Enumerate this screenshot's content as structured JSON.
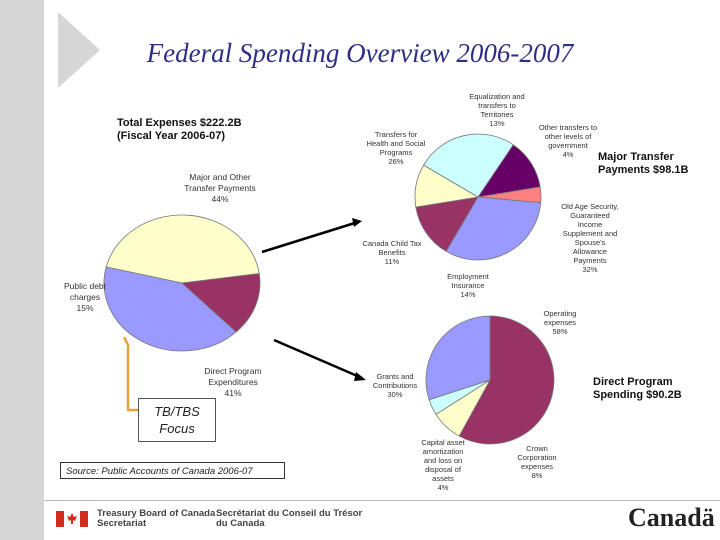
{
  "title": "Federal Spending Overview 2006-2007",
  "total_label": "Total Expenses $222.2B",
  "total_sub": "(Fiscal Year 2006-07)",
  "focus_label_line1": "TB/TBS",
  "focus_label_line2": "Focus",
  "source": "Source: Public Accounts of Canada 2006-07",
  "major_transfer_title_line1": "Major Transfer",
  "major_transfer_title_line2": "Payments $98.1B",
  "direct_title_line1": "Direct Program",
  "direct_title_line2": "Spending $90.2B",
  "footer": {
    "dept_en_line1": "Treasury Board of Canada",
    "dept_en_line2": "Secretariat",
    "dept_fr_line1": "Secrétariat du Conseil du Trésor",
    "dept_fr_line2": "du Canada",
    "wordmark": "Canadä"
  },
  "chart_data": [
    {
      "type": "pie",
      "title": "Total Expenses $222.2B",
      "slices": [
        {
          "label_lines": [
            "Major and Other",
            "Transfer Payments"
          ],
          "pct_label": "44%",
          "value": 44,
          "color": "#ffffcc"
        },
        {
          "label_lines": [
            "Direct Program",
            "Expenditures"
          ],
          "pct_label": "41%",
          "value": 41,
          "color": "#9999ff"
        },
        {
          "label_lines": [
            "Public debt",
            "charges"
          ],
          "pct_label": "15%",
          "value": 15,
          "color": "#993366"
        }
      ]
    },
    {
      "type": "pie",
      "title": "Major Transfer Payments $98.1B",
      "slices": [
        {
          "label_lines": [
            "Equalization and",
            "transfers to",
            "Territories"
          ],
          "pct_label": "13%",
          "value": 13,
          "color": "#660066"
        },
        {
          "label_lines": [
            "Other transfers to",
            "other levels of",
            "government"
          ],
          "pct_label": "4%",
          "value": 4,
          "color": "#ff8080"
        },
        {
          "label_lines": [
            "Old Age Security,",
            "Guaranteed",
            "Income",
            "Supplement and",
            "Spouse's",
            "Allowance",
            "Payments"
          ],
          "pct_label": "32%",
          "value": 32,
          "color": "#9999ff"
        },
        {
          "label_lines": [
            "Employment",
            "Insurance"
          ],
          "pct_label": "14%",
          "value": 14,
          "color": "#993366"
        },
        {
          "label_lines": [
            "Canada Child Tax",
            "Benefits"
          ],
          "pct_label": "11%",
          "value": 11,
          "color": "#ffffcc"
        },
        {
          "label_lines": [
            "Transfers for",
            "Health and Social",
            "Programs"
          ],
          "pct_label": "26%",
          "value": 26,
          "color": "#ccffff"
        }
      ]
    },
    {
      "type": "pie",
      "title": "Direct Program Spending $90.2B",
      "slices": [
        {
          "label_lines": [
            "Operating",
            "expenses"
          ],
          "pct_label": "58%",
          "value": 58,
          "color": "#993366"
        },
        {
          "label_lines": [
            "Crown",
            "Corporation",
            "expenses"
          ],
          "pct_label": "8%",
          "value": 8,
          "color": "#ffffcc"
        },
        {
          "label_lines": [
            "Capital asset",
            "amortization",
            "and loss on",
            "disposal of",
            "assets"
          ],
          "pct_label": "4%",
          "value": 4,
          "color": "#ccffff"
        },
        {
          "label_lines": [
            "Grants and",
            "Contributions"
          ],
          "pct_label": "30%",
          "value": 30,
          "color": "#9999ff"
        }
      ]
    }
  ]
}
